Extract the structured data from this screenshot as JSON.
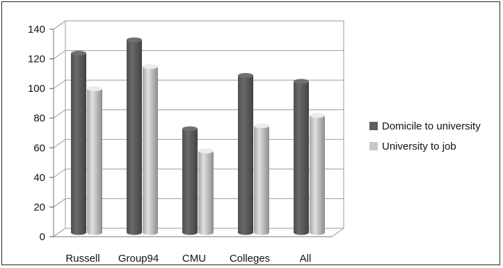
{
  "chart_data": {
    "type": "bar",
    "title": "",
    "xlabel": "",
    "ylabel": "",
    "categories": [
      "Russell",
      "Group94",
      "CMU",
      "Colleges",
      "All"
    ],
    "series": [
      {
        "name": "Domicile to university",
        "values": [
          121,
          130,
          70,
          106,
          102
        ],
        "color": "#5f5f5f"
      },
      {
        "name": "University to job",
        "values": [
          97,
          112,
          55,
          72,
          79
        ],
        "color": "#c8c8c8"
      }
    ],
    "ylim": [
      0,
      140
    ],
    "yticks": [
      "0",
      "20",
      "40",
      "60",
      "80",
      "100",
      "120",
      "140"
    ],
    "grid": true,
    "legend_position": "right",
    "style": "3d-cylinder"
  }
}
